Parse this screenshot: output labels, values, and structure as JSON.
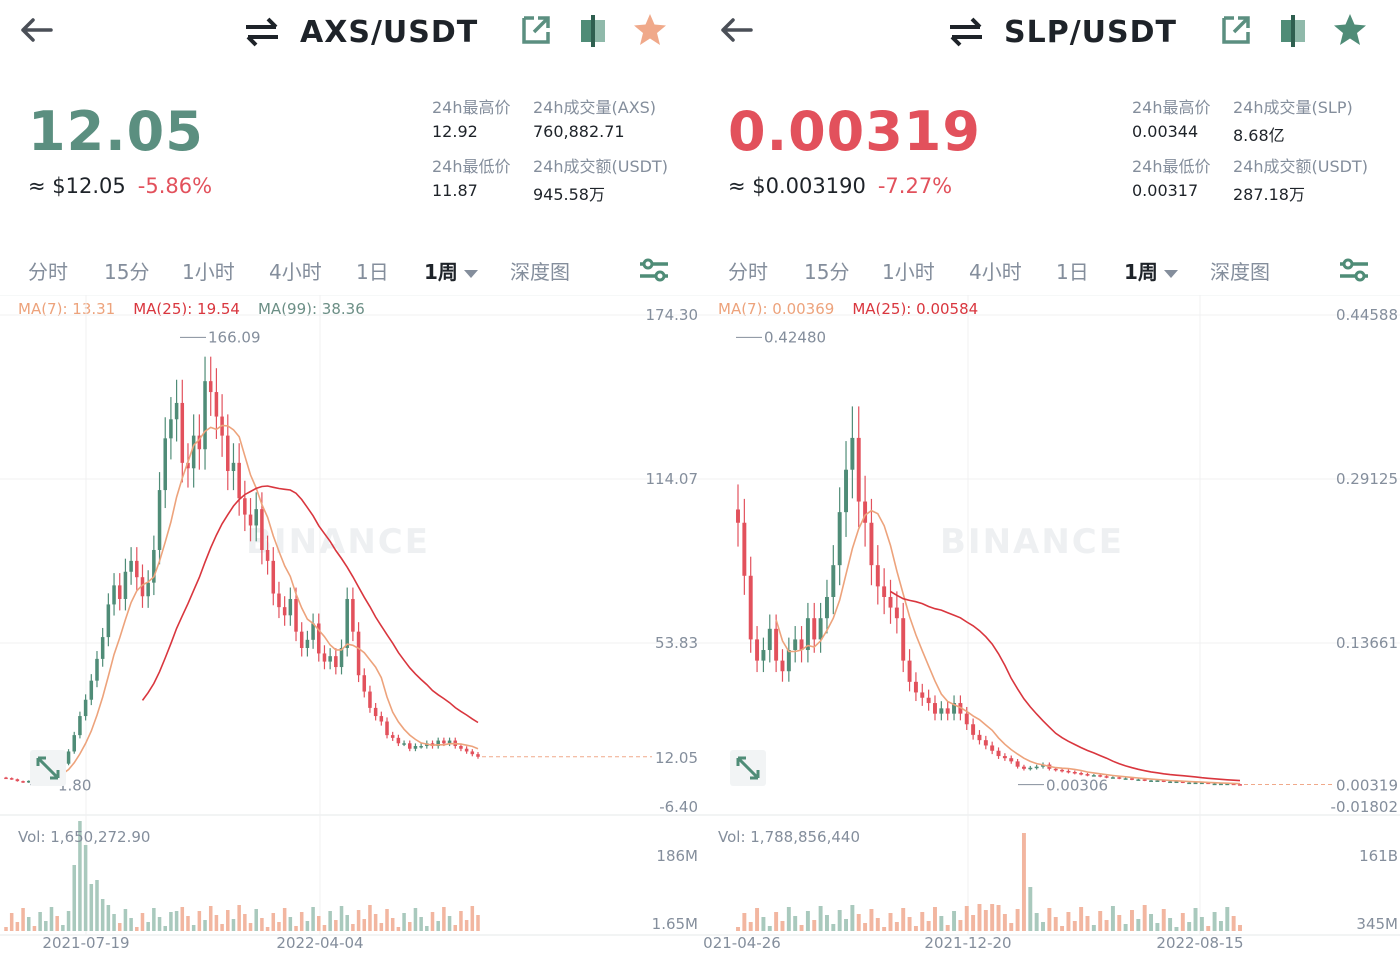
{
  "colors": {
    "up": "#4f8c77",
    "down": "#e2515c",
    "ma7": "#eda37c",
    "ma25": "#d9363e",
    "ma99": "#6c8f86",
    "star_left": "#f0a98a",
    "star_right": "#4f8c77"
  },
  "panels": [
    {
      "pair": "AXS/USDT",
      "price": "12.05",
      "price_color": "#5b8f80",
      "approx": "≈ $12.05",
      "change": "-5.86%",
      "stats": {
        "high_label": "24h最高价",
        "high": "12.92",
        "vol_label": "24h成交量(AXS)",
        "vol": "760,882.71",
        "low_label": "24h最低价",
        "low": "11.87",
        "amount_label": "24h成交额(USDT)",
        "amount": "945.58万"
      },
      "tabs": [
        "分时",
        "15分",
        "1小时",
        "4小时",
        "1日",
        "1周",
        "深度图"
      ],
      "active_tab": "1周",
      "ma": [
        {
          "label": "MA(7): 13.31",
          "color": "#eda37c"
        },
        {
          "label": "MA(25): 19.54",
          "color": "#d9363e"
        },
        {
          "label": "MA(99): 38.36",
          "color": "#6c8f86"
        }
      ],
      "watermark": "BINANCE",
      "y_axis_ticks": [
        "174.30",
        "114.07",
        "53.83",
        "-6.40"
      ],
      "current_price_tag": "12.05",
      "high_marker": "166.09",
      "low_marker": "1.80",
      "volume_label": "Vol: 1,650,272.90",
      "vol_axis_ticks": [
        "186M",
        "1.65M"
      ],
      "x_axis_ticks": [
        "2021-07-19",
        "2022-04-04"
      ]
    },
    {
      "pair": "SLP/USDT",
      "price": "0.00319",
      "price_color": "#e2515c",
      "approx": "≈ $0.003190",
      "change": "-7.27%",
      "stats": {
        "high_label": "24h最高价",
        "high": "0.00344",
        "vol_label": "24h成交量(SLP)",
        "vol": "8.68亿",
        "low_label": "24h最低价",
        "low": "0.00317",
        "amount_label": "24h成交额(USDT)",
        "amount": "287.18万"
      },
      "tabs": [
        "分时",
        "15分",
        "1小时",
        "4小时",
        "1日",
        "1周",
        "深度图"
      ],
      "active_tab": "1周",
      "ma": [
        {
          "label": "MA(7): 0.00369",
          "color": "#eda37c"
        },
        {
          "label": "MA(25): 0.00584",
          "color": "#d9363e"
        }
      ],
      "watermark": "BINANCE",
      "y_axis_ticks": [
        "0.44588",
        "0.29125",
        "0.13661",
        "-0.01802"
      ],
      "current_price_tag": "0.00319",
      "high_marker": "0.42480",
      "low_marker": "0.00306",
      "volume_label": "Vol: 1,788,856,440",
      "vol_axis_ticks": [
        "161B",
        "345M"
      ],
      "x_axis_ticks": [
        "021-04-26",
        "2021-12-20",
        "2022-08-15"
      ]
    }
  ],
  "chart_data": [
    {
      "type": "candlestick",
      "title": "AXS/USDT",
      "ylim": [
        -6.4,
        174.3
      ],
      "high": 166.09,
      "low": 1.8,
      "last": 12.05,
      "x_ticks": [
        "2021-07-19",
        "2022-04-04"
      ],
      "closes": [
        4.2,
        3.8,
        3.1,
        2.6,
        3.2,
        2.8,
        4.1,
        6.0,
        8.0,
        7.2,
        9.5,
        14.0,
        20.0,
        27.0,
        33.0,
        40.0,
        48.0,
        56.0,
        68.0,
        75.0,
        70.0,
        80.0,
        84.0,
        78.0,
        71.0,
        76.0,
        88.0,
        110.0,
        129.0,
        136.0,
        142.0,
        120.0,
        118.0,
        130.0,
        125.0,
        150.0,
        146.0,
        137.0,
        130.0,
        117.0,
        120.0,
        107.0,
        101.0,
        97.0,
        103.0,
        88.0,
        84.0,
        72.0,
        67.0,
        64.0,
        70.0,
        58.0,
        52.0,
        55.0,
        61.0,
        50.0,
        47.0,
        49.0,
        45.0,
        52.0,
        70.0,
        58.0,
        42.0,
        36.0,
        30.0,
        27.0,
        25.0,
        20.0,
        19.0,
        17.0,
        17.0,
        15.0,
        16.0,
        16.0,
        17.0,
        16.0,
        18.0,
        17.0,
        18.0,
        16.0,
        15.0,
        14.0,
        13.0,
        12.05
      ]
    },
    {
      "type": "candlestick",
      "title": "SLP/USDT",
      "ylim": [
        -0.01802,
        0.44588
      ],
      "high": 0.4248,
      "low": 0.00306,
      "last": 0.00319,
      "x_ticks": [
        "021-04-26",
        "2021-12-20",
        "2022-08-15"
      ],
      "closes": [
        0.25,
        0.2,
        0.14,
        0.12,
        0.13,
        0.15,
        0.12,
        0.11,
        0.13,
        0.14,
        0.13,
        0.16,
        0.14,
        0.16,
        0.18,
        0.21,
        0.26,
        0.3,
        0.33,
        0.27,
        0.25,
        0.21,
        0.19,
        0.18,
        0.17,
        0.16,
        0.12,
        0.1,
        0.09,
        0.085,
        0.08,
        0.07,
        0.075,
        0.07,
        0.08,
        0.07,
        0.06,
        0.05,
        0.045,
        0.04,
        0.035,
        0.03,
        0.028,
        0.025,
        0.02,
        0.018,
        0.019,
        0.02,
        0.022,
        0.018,
        0.017,
        0.016,
        0.015,
        0.014,
        0.013,
        0.012,
        0.012,
        0.011,
        0.01,
        0.01,
        0.009,
        0.009,
        0.008,
        0.008,
        0.007,
        0.007,
        0.007,
        0.006,
        0.006,
        0.006,
        0.005,
        0.005,
        0.005,
        0.005,
        0.004,
        0.004,
        0.004,
        0.004,
        0.0035,
        0.00319
      ]
    }
  ]
}
